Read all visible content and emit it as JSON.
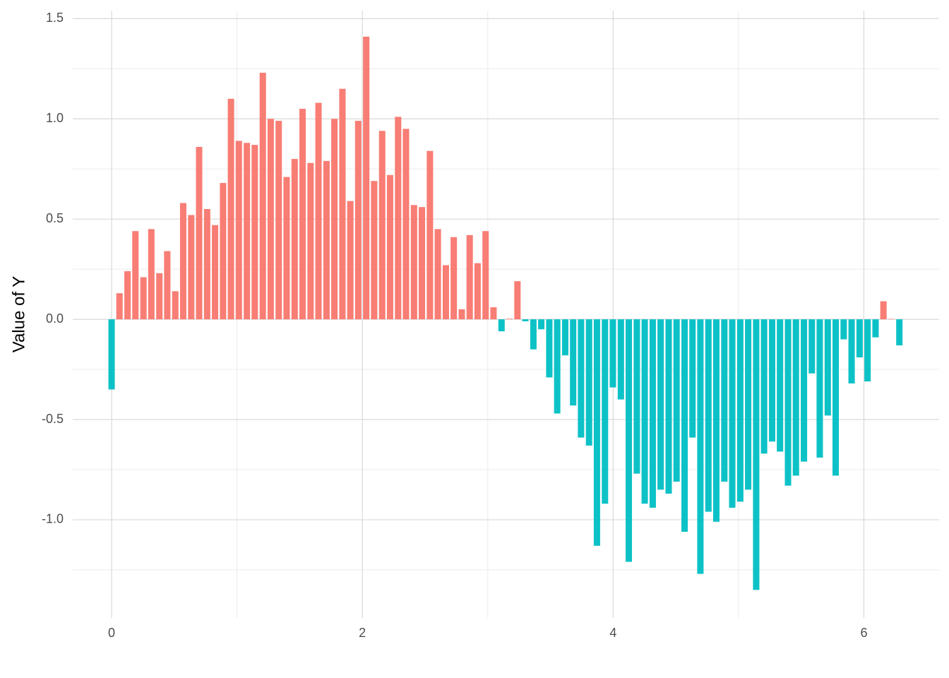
{
  "chart_data": {
    "type": "bar",
    "y_label": "Value of Y",
    "x": [
      0,
      0.063,
      0.127,
      0.19,
      0.254,
      0.317,
      0.381,
      0.444,
      0.508,
      0.571,
      0.635,
      0.698,
      0.762,
      0.825,
      0.889,
      0.952,
      1.015,
      1.079,
      1.142,
      1.206,
      1.269,
      1.333,
      1.396,
      1.46,
      1.523,
      1.587,
      1.65,
      1.714,
      1.777,
      1.841,
      1.904,
      1.967,
      2.031,
      2.094,
      2.158,
      2.221,
      2.285,
      2.348,
      2.412,
      2.475,
      2.539,
      2.602,
      2.666,
      2.729,
      2.793,
      2.856,
      2.919,
      2.983,
      3.046,
      3.11,
      3.173,
      3.237,
      3.3,
      3.364,
      3.427,
      3.491,
      3.554,
      3.618,
      3.681,
      3.744,
      3.808,
      3.871,
      3.935,
      3.998,
      4.062,
      4.125,
      4.189,
      4.252,
      4.316,
      4.379,
      4.443,
      4.506,
      4.57,
      4.633,
      4.696,
      4.76,
      4.823,
      4.887,
      4.95,
      5.014,
      5.077,
      5.141,
      5.204,
      5.268,
      5.331,
      5.395,
      5.458,
      5.522,
      5.585,
      5.648,
      5.712,
      5.775,
      5.839,
      5.902,
      5.966,
      6.029,
      6.093,
      6.156,
      6.22,
      6.283
    ],
    "values": [
      -0.35,
      0.13,
      0.24,
      0.44,
      0.21,
      0.45,
      0.23,
      0.34,
      0.14,
      0.58,
      0.52,
      0.86,
      0.55,
      0.47,
      0.68,
      1.1,
      0.89,
      0.88,
      0.87,
      1.23,
      1.0,
      0.99,
      0.71,
      0.8,
      1.05,
      0.78,
      1.08,
      0.79,
      1.0,
      1.15,
      0.59,
      0.99,
      1.41,
      0.69,
      0.94,
      0.72,
      1.01,
      0.95,
      0.57,
      0.56,
      0.84,
      0.45,
      0.27,
      0.41,
      0.05,
      0.42,
      0.28,
      0.44,
      0.06,
      -0.06,
      0.003,
      0.19,
      -0.01,
      -0.15,
      -0.05,
      -0.29,
      -0.47,
      -0.18,
      -0.43,
      -0.59,
      -0.63,
      -1.13,
      -0.92,
      -0.34,
      -0.4,
      -1.21,
      -0.77,
      -0.92,
      -0.94,
      -0.85,
      -0.87,
      -0.81,
      -1.06,
      -0.59,
      -1.27,
      -0.96,
      -1.01,
      -0.81,
      -0.94,
      -0.91,
      -0.85,
      -1.35,
      -0.67,
      -0.61,
      -0.66,
      -0.83,
      -0.78,
      -0.71,
      -0.27,
      -0.69,
      -0.48,
      -0.78,
      -0.1,
      -0.32,
      -0.19,
      -0.31,
      -0.09,
      0.09,
      0.002,
      -0.13
    ],
    "positive_color": "#F8766D",
    "negative_color": "#00BFC4",
    "xlim": [
      -0.31,
      6.6
    ],
    "ylim": [
      -1.49,
      1.54
    ],
    "xticks": [
      0,
      2,
      4,
      6
    ],
    "minor_xticks": [
      1,
      3,
      5
    ],
    "yticks": [
      {
        "value": -1,
        "label": "-1.0"
      },
      -0.5,
      {
        "value": 0,
        "label": "0.0"
      },
      0.5,
      {
        "value": 1,
        "label": "1.0"
      },
      1.5
    ],
    "minor_yticks": [
      -1.25,
      -0.75,
      -0.25,
      0.25,
      0.75,
      1.25
    ],
    "grid": true
  }
}
